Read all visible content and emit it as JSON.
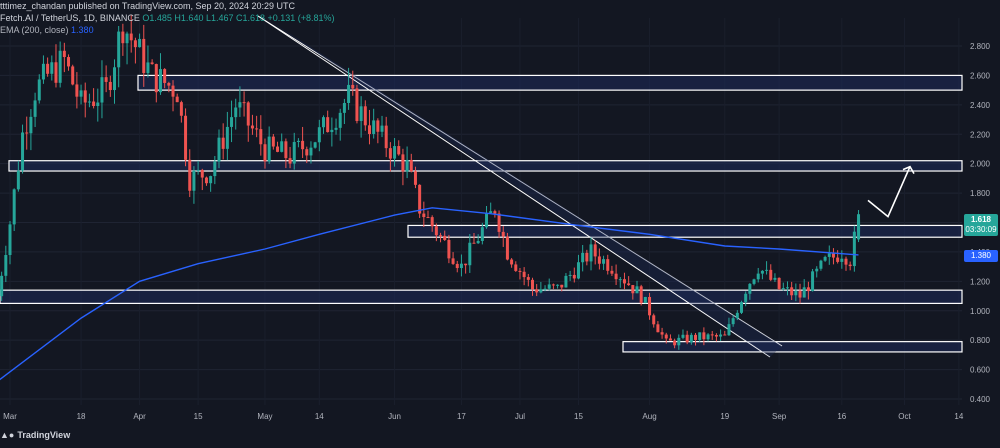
{
  "header": {
    "publisher": "tttimez_chandan published on TradingView.com, Sep 20, 2024 20:29 UTC",
    "symbol": "Fetch.AI / TetherUS, 1D, BINANCE",
    "ohlc": "O1.485 H1.640 L1.467 C1.618 +0.131 (+8.81%)",
    "ema_label": "EMA (200, close)",
    "ema_value": "1.380"
  },
  "price_tags": {
    "last_price": "1.618",
    "countdown": "03:30:09",
    "ema_price": "1.380"
  },
  "footer": {
    "brand": "TradingView"
  },
  "colors": {
    "background": "#131722",
    "up": "#26a69a",
    "down": "#ef5350",
    "ema": "#2962ff",
    "zone": "#1e2a5a"
  },
  "chart_data": {
    "type": "candlestick",
    "symbol": "Fetch.AI / TetherUS",
    "timeframe": "1D",
    "exchange": "BINANCE",
    "ylim": [
      0.3,
      3.0
    ],
    "y_ticks": [
      "2.800",
      "2.600",
      "2.400",
      "2.200",
      "2.000",
      "1.800",
      "1.600",
      "1.400",
      "1.200",
      "1.000",
      "0.800",
      "0.600",
      "0.400"
    ],
    "x_ticks": [
      "Mar",
      "18",
      "Apr",
      "15",
      "May",
      "14",
      "Jun",
      "17",
      "Jul",
      "15",
      "Aug",
      "19",
      "Sep",
      "16",
      "Oct",
      "14"
    ],
    "close_path": [
      [
        "Feb 27",
        1.1
      ],
      [
        "Mar 1",
        1.6
      ],
      [
        "Mar 4",
        2.2
      ],
      [
        "Mar 7",
        2.5
      ],
      [
        "Mar 10",
        2.6
      ],
      [
        "Mar 14",
        2.7
      ],
      [
        "Mar 18",
        2.4
      ],
      [
        "Mar 24",
        2.5
      ],
      [
        "Mar 28",
        2.95
      ],
      [
        "Apr 4",
        2.6
      ],
      [
        "Apr 10",
        2.5
      ],
      [
        "Apr 13",
        1.9
      ],
      [
        "Apr 18",
        1.95
      ],
      [
        "Apr 24",
        2.4
      ],
      [
        "May 1",
        2.1
      ],
      [
        "May 7",
        2.05
      ],
      [
        "May 14",
        2.2
      ],
      [
        "May 21",
        2.45
      ],
      [
        "May 28",
        2.2
      ],
      [
        "Jun 4",
        1.98
      ],
      [
        "Jun 7",
        1.7
      ],
      [
        "Jun 12",
        1.5
      ],
      [
        "Jun 17",
        1.3
      ],
      [
        "Jun 21",
        1.5
      ],
      [
        "Jun 25",
        1.7
      ],
      [
        "Jun 28",
        1.4
      ],
      [
        "Jul 4",
        1.15
      ],
      [
        "Jul 10",
        1.15
      ],
      [
        "Jul 18",
        1.4
      ],
      [
        "Jul 23",
        1.3
      ],
      [
        "Jul 30",
        1.1
      ],
      [
        "Aug 5",
        0.78
      ],
      [
        "Aug 12",
        0.82
      ],
      [
        "Aug 19",
        0.82
      ],
      [
        "Aug 24",
        1.15
      ],
      [
        "Aug 27",
        1.3
      ],
      [
        "Sep 1",
        1.15
      ],
      [
        "Sep 6",
        1.1
      ],
      [
        "Sep 12",
        1.33
      ],
      [
        "Sep 16",
        1.4
      ],
      [
        "Sep 18",
        1.35
      ],
      [
        "Sep 20",
        1.618
      ]
    ],
    "ema200": [
      [
        "Feb 27",
        0.52
      ],
      [
        "Mar 18",
        0.95
      ],
      [
        "Apr 1",
        1.2
      ],
      [
        "Apr 15",
        1.32
      ],
      [
        "May 1",
        1.42
      ],
      [
        "May 14",
        1.52
      ],
      [
        "Jun 1",
        1.65
      ],
      [
        "Jun 10",
        1.7
      ],
      [
        "Jun 24",
        1.66
      ],
      [
        "Jul 15",
        1.58
      ],
      [
        "Aug 1",
        1.52
      ],
      [
        "Aug 19",
        1.44
      ],
      [
        "Sep 1",
        1.42
      ],
      [
        "Sep 20",
        1.38
      ]
    ],
    "horizontal_zones": [
      {
        "from": 2.5,
        "to": 2.6
      },
      {
        "from": 1.95,
        "to": 2.02
      },
      {
        "from": 1.5,
        "to": 1.58
      },
      {
        "from": 1.05,
        "to": 1.14
      },
      {
        "from": 0.72,
        "to": 0.79
      }
    ],
    "projection_path": [
      1.75,
      1.64,
      1.98
    ],
    "last_price": 1.618,
    "ema_last": 1.38
  }
}
